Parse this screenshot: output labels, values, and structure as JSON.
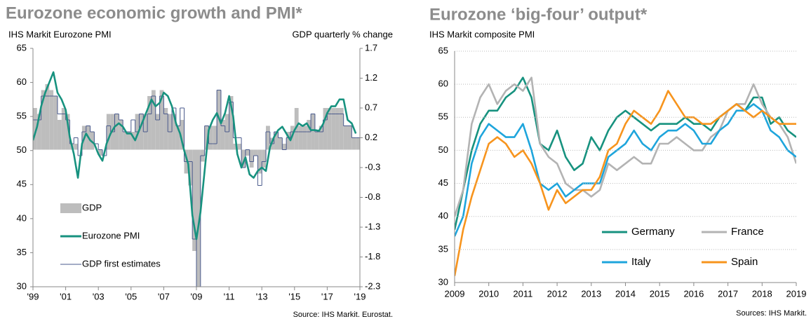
{
  "chart_data": [
    {
      "type": "bar-line",
      "title": "Eurozone economic growth and PMI*",
      "y_label": "IHS Markit Eurozone PMI",
      "y2_label": "GDP quarterly % change",
      "source": "Source: IHS Markit. Eurostat.",
      "legend": "lower left",
      "grid": false,
      "xlim": [
        1999,
        2019
      ],
      "xticks": [
        {
          "value": 1999,
          "label": "'99"
        },
        {
          "value": 2001,
          "label": "'01"
        },
        {
          "value": 2003,
          "label": "'03"
        },
        {
          "value": 2005,
          "label": "'05"
        },
        {
          "value": 2007,
          "label": "'07"
        },
        {
          "value": 2009,
          "label": "'09"
        },
        {
          "value": 2011,
          "label": "'11"
        },
        {
          "value": 2013,
          "label": "'13"
        },
        {
          "value": 2015,
          "label": "'15"
        },
        {
          "value": 2017,
          "label": "'17"
        },
        {
          "value": 2019,
          "label": "'19"
        }
      ],
      "ylim": [
        30,
        65
      ],
      "yticks": [
        30,
        35,
        40,
        45,
        50,
        55,
        60,
        65
      ],
      "y2lim": [
        -2.3,
        1.7
      ],
      "y2ticks": [
        -2.3,
        -1.8,
        -1.3,
        -0.8,
        -0.3,
        0.2,
        0.7,
        1.2,
        1.7
      ],
      "x": [
        1999,
        1999.25,
        1999.5,
        1999.75,
        2000,
        2000.25,
        2000.5,
        2000.75,
        2001,
        2001.25,
        2001.5,
        2001.75,
        2002,
        2002.25,
        2002.5,
        2002.75,
        2003,
        2003.25,
        2003.5,
        2003.75,
        2004,
        2004.25,
        2004.5,
        2004.75,
        2005,
        2005.25,
        2005.5,
        2005.75,
        2006,
        2006.25,
        2006.5,
        2006.75,
        2007,
        2007.25,
        2007.5,
        2007.75,
        2008,
        2008.25,
        2008.5,
        2008.75,
        2009,
        2009.25,
        2009.5,
        2009.75,
        2010,
        2010.25,
        2010.5,
        2010.75,
        2011,
        2011.25,
        2011.5,
        2011.75,
        2012,
        2012.25,
        2012.5,
        2012.75,
        2013,
        2013.25,
        2013.5,
        2013.75,
        2014,
        2014.25,
        2014.5,
        2014.75,
        2015,
        2015.25,
        2015.5,
        2015.75,
        2016,
        2016.25,
        2016.5,
        2016.75,
        2017,
        2017.25,
        2017.5,
        2017.75,
        2018,
        2018.25,
        2018.5,
        2018.75
      ],
      "series": [
        {
          "name": "GDP",
          "kind": "bar",
          "axis": "y2",
          "color": "#bdbdbd",
          "values": [
            0.7,
            0.6,
            1.0,
            1.1,
            1.0,
            0.9,
            0.5,
            0.7,
            0.6,
            0.1,
            0.1,
            0.0,
            0.4,
            0.4,
            0.3,
            0.0,
            -0.1,
            0.0,
            0.6,
            0.6,
            0.6,
            0.5,
            0.3,
            0.3,
            0.3,
            0.6,
            0.6,
            0.6,
            0.9,
            1.0,
            0.6,
            1.0,
            0.7,
            0.6,
            0.6,
            0.4,
            0.5,
            -0.4,
            -0.6,
            -1.7,
            -2.5,
            -0.2,
            0.4,
            0.4,
            0.4,
            1.0,
            0.5,
            0.6,
            0.9,
            0.1,
            0.1,
            -0.3,
            -0.1,
            -0.3,
            -0.1,
            -0.4,
            -0.3,
            0.4,
            0.2,
            0.3,
            0.2,
            0.1,
            0.3,
            0.4,
            0.7,
            0.4,
            0.4,
            0.5,
            0.6,
            0.3,
            0.4,
            0.7,
            0.7,
            0.7,
            0.7,
            0.7,
            0.4,
            0.4,
            0.2,
            0.2
          ]
        },
        {
          "name": "Eurozone PMI",
          "kind": "line",
          "axis": "y",
          "color": "#17927f",
          "values": [
            51.5,
            53.5,
            56.5,
            58.5,
            60,
            61.5,
            58.5,
            57.5,
            56,
            52,
            49.5,
            46,
            51,
            52.5,
            51.5,
            51,
            49.5,
            48.5,
            51,
            52.5,
            53.5,
            54,
            53.5,
            52.5,
            52.5,
            51.5,
            53,
            54.5,
            56,
            57.5,
            56.5,
            57,
            58.5,
            58,
            56.5,
            54,
            52.5,
            50,
            48,
            40.5,
            37,
            41,
            47,
            53,
            54.5,
            55.5,
            54,
            55.5,
            58,
            55,
            49.5,
            47.5,
            49,
            46.5,
            46,
            47,
            47.5,
            47,
            50.5,
            52,
            53,
            53.5,
            52.5,
            51.5,
            53,
            54,
            53.6,
            54,
            53,
            53,
            52.9,
            53.9,
            55.5,
            56.5,
            56.5,
            57.5,
            57.5,
            54.5,
            54,
            52.5
          ]
        },
        {
          "name": "GDP first estimates",
          "kind": "step",
          "axis": "y2",
          "color": "#4a5a8c",
          "values": [
            0.5,
            0.5,
            0.9,
            0.9,
            0.9,
            0.9,
            0.6,
            0.6,
            0.5,
            0.1,
            0.2,
            -0.1,
            0.3,
            0.4,
            0.3,
            0.1,
            0.0,
            -0.1,
            0.4,
            0.3,
            0.6,
            0.5,
            0.3,
            0.3,
            0.5,
            0.3,
            0.6,
            0.3,
            0.6,
            0.9,
            0.5,
            0.9,
            0.6,
            0.3,
            0.7,
            0.4,
            0.7,
            -0.2,
            -0.2,
            -1.5,
            -2.5,
            -0.1,
            0.4,
            0.1,
            0.1,
            1.0,
            0.4,
            0.3,
            0.8,
            0.2,
            0.2,
            -0.3,
            0.0,
            -0.2,
            -0.1,
            -0.6,
            -0.2,
            0.3,
            0.1,
            0.3,
            0.2,
            0.0,
            0.2,
            0.3,
            0.3,
            0.3,
            0.3,
            0.3,
            0.6,
            0.3,
            0.3,
            0.5,
            0.6,
            0.6,
            0.6,
            0.6,
            0.4,
            0.4,
            0.2,
            0.2
          ]
        }
      ]
    },
    {
      "type": "line",
      "title": "Eurozone ‘big-four’ output*",
      "y_label": "IHS Markit  composite PMI",
      "source": "Sources: IHS Markit.",
      "legend": "lower right",
      "grid": true,
      "xlim": [
        2009,
        2019
      ],
      "xticks": [
        2009,
        2010,
        2011,
        2012,
        2013,
        2014,
        2015,
        2016,
        2017,
        2018,
        2019
      ],
      "ylim": [
        30,
        65
      ],
      "yticks": [
        30,
        35,
        40,
        45,
        50,
        55,
        60,
        65
      ],
      "x": [
        2009,
        2009.25,
        2009.5,
        2009.75,
        2010,
        2010.25,
        2010.5,
        2010.75,
        2011,
        2011.25,
        2011.5,
        2011.75,
        2012,
        2012.25,
        2012.5,
        2012.75,
        2013,
        2013.25,
        2013.5,
        2013.75,
        2014,
        2014.25,
        2014.5,
        2014.75,
        2015,
        2015.25,
        2015.5,
        2015.75,
        2016,
        2016.25,
        2016.5,
        2016.75,
        2017,
        2017.25,
        2017.5,
        2017.75,
        2018,
        2018.25,
        2018.5,
        2018.75,
        2019
      ],
      "series": [
        {
          "name": "Germany",
          "color": "#17927f",
          "values": [
            38,
            44,
            50,
            54,
            56,
            56,
            58,
            59,
            61,
            58,
            51,
            50,
            53,
            49,
            47,
            48,
            52,
            50,
            53,
            55,
            56,
            55,
            54,
            53,
            54,
            54,
            54,
            55,
            54,
            54,
            53,
            55,
            56,
            57,
            56,
            58,
            58,
            54,
            55,
            53,
            52
          ]
        },
        {
          "name": "France",
          "color": "#b3b3b3",
          "values": [
            40,
            44,
            54,
            58,
            60,
            57,
            59,
            60,
            59,
            61,
            51,
            49,
            48,
            45,
            44,
            44,
            43,
            44,
            48,
            47,
            48,
            49,
            48,
            48,
            51,
            51,
            52,
            51,
            50,
            50,
            52,
            53,
            56,
            57,
            57,
            60,
            57,
            55,
            54,
            52,
            48
          ]
        },
        {
          "name": "Italy",
          "color": "#1ea5dc",
          "values": [
            37,
            40,
            48,
            52,
            54,
            53,
            52,
            52,
            54,
            50,
            45,
            44,
            45,
            43,
            44,
            45,
            45,
            45,
            49,
            50,
            51,
            53,
            51,
            50,
            52,
            53,
            53,
            54,
            53,
            51,
            51,
            53,
            54,
            56,
            56,
            57,
            56,
            53,
            52,
            50,
            49
          ]
        },
        {
          "name": "Spain",
          "color": "#f7941d",
          "values": [
            31,
            38,
            43,
            47,
            51,
            52,
            51,
            49,
            50,
            48,
            45,
            41,
            44,
            42,
            43,
            44,
            44,
            46,
            50,
            51,
            54,
            56,
            55,
            54,
            56,
            59,
            57,
            55,
            55,
            54,
            54,
            55,
            56,
            57,
            56,
            55,
            56,
            55,
            54,
            54,
            54
          ]
        }
      ]
    }
  ]
}
